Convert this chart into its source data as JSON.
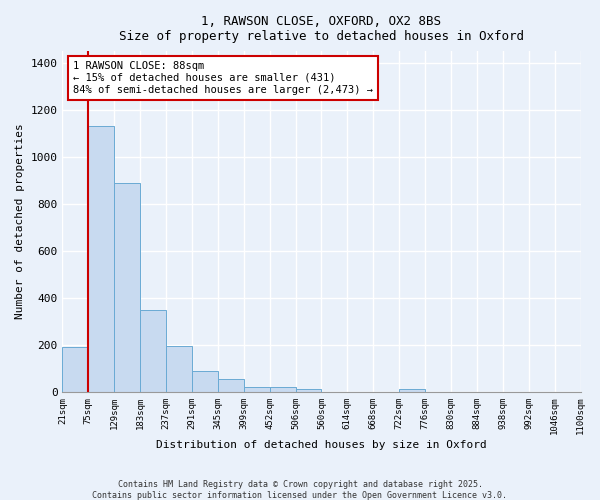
{
  "title_line1": "1, RAWSON CLOSE, OXFORD, OX2 8BS",
  "title_line2": "Size of property relative to detached houses in Oxford",
  "xlabel": "Distribution of detached houses by size in Oxford",
  "ylabel": "Number of detached properties",
  "bar_values": [
    190,
    1130,
    890,
    350,
    195,
    88,
    55,
    22,
    20,
    12,
    0,
    0,
    0,
    12,
    0,
    0,
    0,
    0,
    0,
    0
  ],
  "bin_labels": [
    "21sqm",
    "75sqm",
    "129sqm",
    "183sqm",
    "237sqm",
    "291sqm",
    "345sqm",
    "399sqm",
    "452sqm",
    "506sqm",
    "560sqm",
    "614sqm",
    "668sqm",
    "722sqm",
    "776sqm",
    "830sqm",
    "884sqm",
    "938sqm",
    "992sqm",
    "1046sqm",
    "1100sqm"
  ],
  "bar_color": "#c8daf0",
  "bar_edge_color": "#6aaad4",
  "background_color": "#eaf1fa",
  "grid_color": "#ffffff",
  "annotation_line1": "1 RAWSON CLOSE: 88sqm",
  "annotation_line2": "← 15% of detached houses are smaller (431)",
  "annotation_line3": "84% of semi-detached houses are larger (2,473) →",
  "annotation_box_color": "#ffffff",
  "annotation_box_edge": "#cc0000",
  "vline_color": "#cc0000",
  "ylim": [
    0,
    1450
  ],
  "yticks": [
    0,
    200,
    400,
    600,
    800,
    1000,
    1200,
    1400
  ],
  "footnote1": "Contains HM Land Registry data © Crown copyright and database right 2025.",
  "footnote2": "Contains public sector information licensed under the Open Government Licence v3.0."
}
